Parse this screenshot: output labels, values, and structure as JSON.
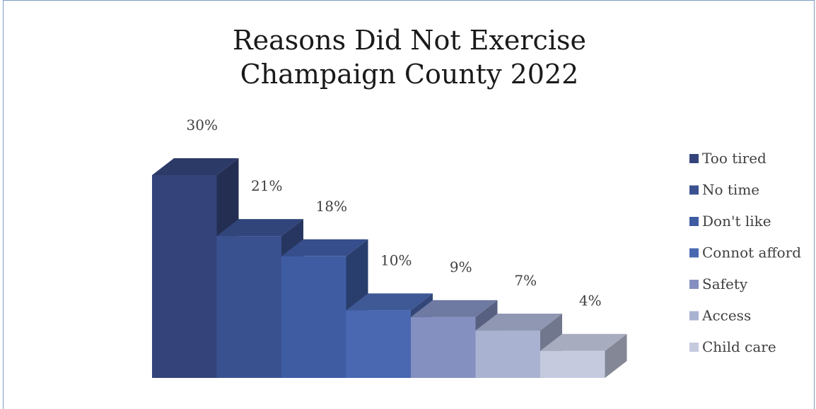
{
  "chart_data": {
    "type": "bar",
    "title": "Reasons Did Not Exercise",
    "subtitle": "Champaign County 2022",
    "categories": [
      "Too tired",
      "No time",
      "Don't like",
      "Connot afford",
      "Safety",
      "Access",
      "Child care"
    ],
    "values": [
      30,
      21,
      18,
      10,
      9,
      7,
      4
    ],
    "data_labels": [
      "30%",
      "21%",
      "18%",
      "10%",
      "9%",
      "7%",
      "4%"
    ],
    "colors": [
      "#34447a",
      "#3a5190",
      "#3f5ca3",
      "#4a68b1",
      "#8390c0",
      "#a9b2d1",
      "#c5cadf"
    ],
    "legend": {
      "position": "right",
      "entries": [
        "Too tired",
        "No time",
        "Don't like",
        "Connot afford",
        "Safety",
        "Access",
        "Child care"
      ]
    },
    "ylim": [
      0,
      30
    ],
    "grid": false,
    "bar_style": "3d"
  }
}
